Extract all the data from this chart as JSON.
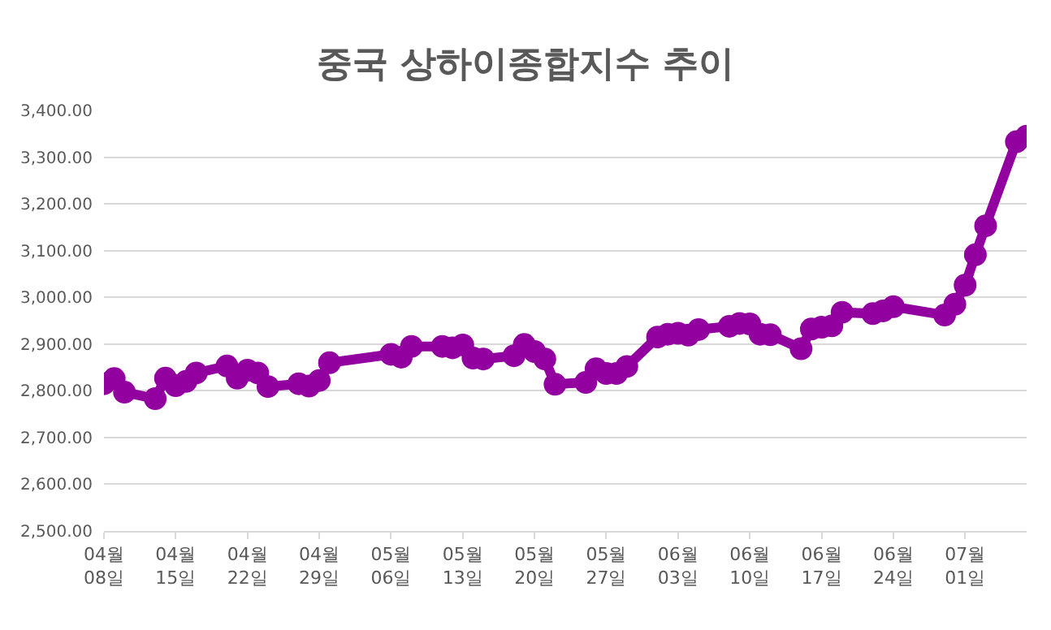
{
  "chart_data": {
    "type": "line",
    "title": "중국 상하이종합지수 추이",
    "x": [
      "--04-08",
      "--04-09",
      "--04-10",
      "--04-13",
      "--04-14",
      "--04-15",
      "--04-16",
      "--04-17",
      "--04-20",
      "--04-21",
      "--04-22",
      "--04-23",
      "--04-24",
      "--04-27",
      "--04-28",
      "--04-29",
      "--04-30",
      "--05-06",
      "--05-07",
      "--05-08",
      "--05-11",
      "--05-12",
      "--05-13",
      "--05-14",
      "--05-15",
      "--05-18",
      "--05-19",
      "--05-20",
      "--05-21",
      "--05-22",
      "--05-25",
      "--05-26",
      "--05-27",
      "--05-28",
      "--05-29",
      "--06-01",
      "--06-02",
      "--06-03",
      "--06-04",
      "--06-05",
      "--06-08",
      "--06-09",
      "--06-10",
      "--06-11",
      "--06-12",
      "--06-15",
      "--06-16",
      "--06-17",
      "--06-18",
      "--06-19",
      "--06-22",
      "--06-23",
      "--06-24",
      "--06-29",
      "--06-30",
      "--07-01",
      "--07-02",
      "--07-03",
      "--07-06",
      "--07-07"
    ],
    "series": [
      {
        "color": "#92009f",
        "values": [
          2815,
          2826,
          2797,
          2783,
          2827,
          2811,
          2820,
          2838,
          2853,
          2827,
          2844,
          2838,
          2809,
          2815,
          2810,
          2822,
          2860,
          2878,
          2872,
          2895,
          2895,
          2892,
          2898,
          2870,
          2868,
          2875,
          2899,
          2884,
          2868,
          2814,
          2818,
          2847,
          2837,
          2837,
          2852,
          2915,
          2921,
          2923,
          2919,
          2931,
          2938,
          2944,
          2943,
          2921,
          2920,
          2890,
          2932,
          2936,
          2939,
          2968,
          2965,
          2971,
          2980,
          2962,
          2985,
          3026,
          3091,
          3153,
          3333,
          3345
        ]
      }
    ],
    "xlim": [
      "--04-08",
      "--07-07"
    ],
    "xticks": [
      {
        "value": "--04-08",
        "label": "04월\n08일"
      },
      {
        "value": "--04-15",
        "label": "04월\n15일"
      },
      {
        "value": "--04-22",
        "label": "04월\n22일"
      },
      {
        "value": "--04-29",
        "label": "04월\n29일"
      },
      {
        "value": "--05-06",
        "label": "05월\n06일"
      },
      {
        "value": "--05-13",
        "label": "05월\n13일"
      },
      {
        "value": "--05-20",
        "label": "05월\n20일"
      },
      {
        "value": "--05-27",
        "label": "05월\n27일"
      },
      {
        "value": "--06-03",
        "label": "06월\n03일"
      },
      {
        "value": "--06-10",
        "label": "06월\n10일"
      },
      {
        "value": "--06-17",
        "label": "06월\n17일"
      },
      {
        "value": "--06-24",
        "label": "06월\n24일"
      },
      {
        "value": "--07-01",
        "label": "07월\n01일"
      }
    ],
    "ylim": [
      2500,
      3400
    ],
    "yticks": [
      {
        "value": 2500,
        "label": "2,500.00"
      },
      {
        "value": 2600,
        "label": "2,600.00"
      },
      {
        "value": 2700,
        "label": "2,700.00"
      },
      {
        "value": 2800,
        "label": "2,800.00"
      },
      {
        "value": 2900,
        "label": "2,900.00"
      },
      {
        "value": 3000,
        "label": "3,000.00"
      },
      {
        "value": 3100,
        "label": "3,100.00"
      },
      {
        "value": 3200,
        "label": "3,200.00"
      },
      {
        "value": 3300,
        "label": "3,300.00"
      },
      {
        "value": 3400,
        "label": "3,400.00"
      }
    ],
    "grid": "y",
    "marker": "circle",
    "line_style": "solid"
  }
}
